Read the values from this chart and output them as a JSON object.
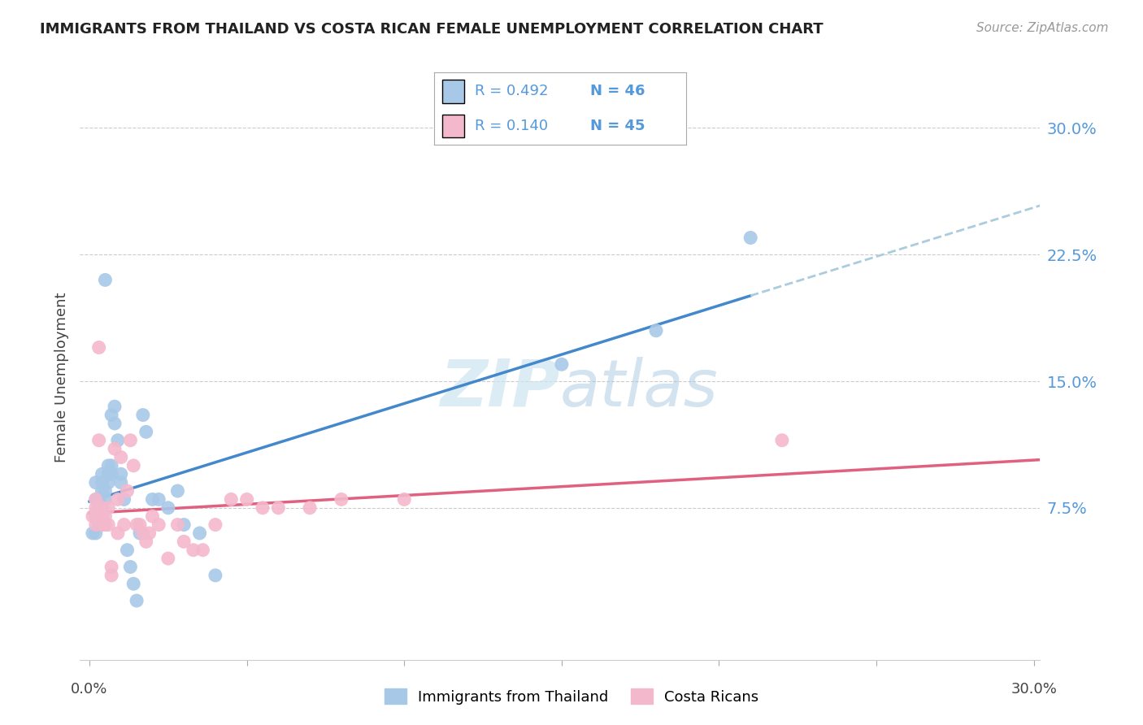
{
  "title": "IMMIGRANTS FROM THAILAND VS COSTA RICAN FEMALE UNEMPLOYMENT CORRELATION CHART",
  "source": "Source: ZipAtlas.com",
  "ylabel": "Female Unemployment",
  "xlim": [
    -0.003,
    0.302
  ],
  "ylim": [
    -0.015,
    0.32
  ],
  "yticks": [
    0.075,
    0.15,
    0.225,
    0.3
  ],
  "ytick_labels": [
    "7.5%",
    "15.0%",
    "22.5%",
    "30.0%"
  ],
  "xticks": [
    0.0,
    0.05,
    0.1,
    0.15,
    0.2,
    0.25,
    0.3
  ],
  "blue_color": "#a8c8e8",
  "pink_color": "#f4b8cc",
  "line_blue": "#4488cc",
  "line_pink": "#e06080",
  "line_dashed": "#aaccdd",
  "tick_color": "#5599dd",
  "watermark_color": "#cce4f0",
  "thailand_x": [
    0.001,
    0.002,
    0.002,
    0.002,
    0.002,
    0.003,
    0.003,
    0.003,
    0.003,
    0.003,
    0.004,
    0.004,
    0.004,
    0.004,
    0.005,
    0.005,
    0.005,
    0.006,
    0.006,
    0.006,
    0.007,
    0.007,
    0.007,
    0.008,
    0.008,
    0.009,
    0.01,
    0.01,
    0.011,
    0.012,
    0.013,
    0.014,
    0.015,
    0.016,
    0.017,
    0.018,
    0.02,
    0.022,
    0.025,
    0.028,
    0.03,
    0.035,
    0.04,
    0.15,
    0.18,
    0.21
  ],
  "thailand_y": [
    0.06,
    0.07,
    0.08,
    0.09,
    0.06,
    0.07,
    0.08,
    0.065,
    0.075,
    0.08,
    0.07,
    0.085,
    0.09,
    0.095,
    0.08,
    0.085,
    0.21,
    0.09,
    0.095,
    0.1,
    0.095,
    0.1,
    0.13,
    0.125,
    0.135,
    0.115,
    0.09,
    0.095,
    0.08,
    0.05,
    0.04,
    0.03,
    0.02,
    0.06,
    0.13,
    0.12,
    0.08,
    0.08,
    0.075,
    0.085,
    0.065,
    0.06,
    0.035,
    0.16,
    0.18,
    0.235
  ],
  "costarica_x": [
    0.001,
    0.002,
    0.002,
    0.002,
    0.003,
    0.003,
    0.003,
    0.004,
    0.004,
    0.004,
    0.005,
    0.005,
    0.006,
    0.006,
    0.007,
    0.007,
    0.008,
    0.009,
    0.009,
    0.01,
    0.011,
    0.012,
    0.013,
    0.014,
    0.015,
    0.016,
    0.017,
    0.018,
    0.019,
    0.02,
    0.022,
    0.025,
    0.028,
    0.03,
    0.033,
    0.036,
    0.04,
    0.045,
    0.05,
    0.055,
    0.06,
    0.07,
    0.08,
    0.1,
    0.22
  ],
  "costarica_y": [
    0.07,
    0.075,
    0.08,
    0.065,
    0.17,
    0.115,
    0.07,
    0.065,
    0.07,
    0.075,
    0.065,
    0.07,
    0.075,
    0.065,
    0.04,
    0.035,
    0.11,
    0.08,
    0.06,
    0.105,
    0.065,
    0.085,
    0.115,
    0.1,
    0.065,
    0.065,
    0.06,
    0.055,
    0.06,
    0.07,
    0.065,
    0.045,
    0.065,
    0.055,
    0.05,
    0.05,
    0.065,
    0.08,
    0.08,
    0.075,
    0.075,
    0.075,
    0.08,
    0.08,
    0.115
  ]
}
